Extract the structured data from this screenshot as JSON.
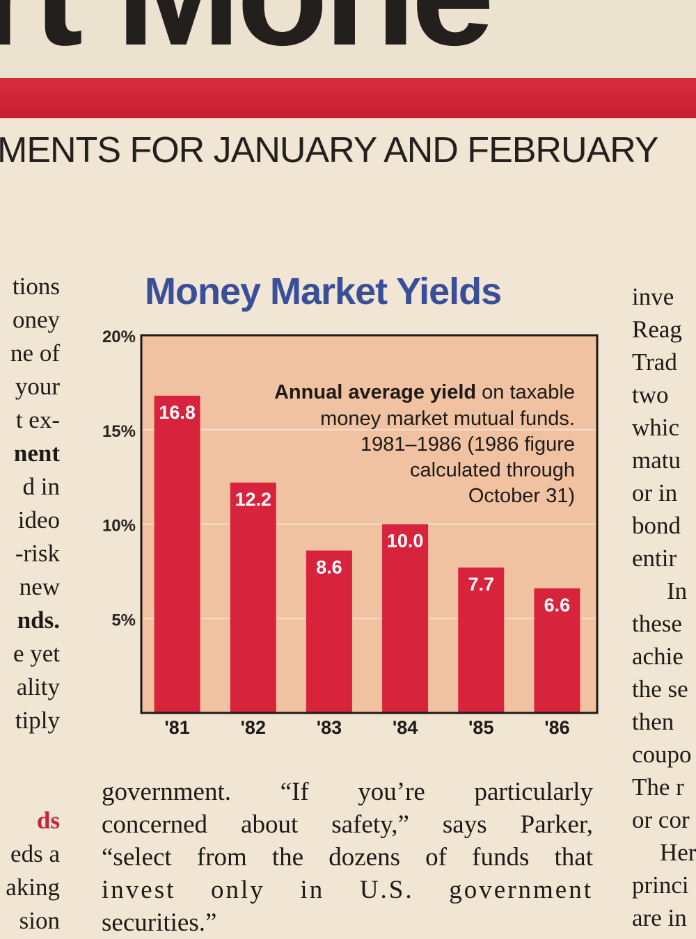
{
  "masthead": {
    "title": "rt Mone"
  },
  "subhead": "MENTS FOR JANUARY AND FEBRUARY",
  "left_column": [
    "tions",
    "oney",
    "ne of",
    "your",
    "t ex-",
    "nent",
    "d in",
    "ideo",
    "-risk",
    "new",
    "nds.",
    "e yet",
    "ality",
    "tiply",
    "",
    "",
    "ds",
    "eds a",
    "aking",
    "sion"
  ],
  "right_column": [
    "inve",
    "Reag",
    "Trad",
    "two",
    "whic",
    "matu",
    "or in",
    "bond",
    "entir",
    "In",
    "these",
    "achie",
    "the se",
    "then",
    "coupo",
    "The r",
    "or cor",
    "Her",
    "princi",
    "are in"
  ],
  "body_text": [
    "government. “If you’re particularly",
    "concerned about safety,” says Parker,",
    "“select from the dozens of funds that",
    "invest only in U.S. government",
    "securities.”"
  ],
  "colors": {
    "bar": "#d8233c",
    "plot_bg": "#f0c2a2",
    "title": "#3a4f99",
    "accent_red": "#c8233a"
  },
  "chart_data": {
    "type": "bar",
    "title": "Money Market Yields",
    "caption_bold": "Annual average yield",
    "caption_rest": " on taxable",
    "caption_lines": [
      "money market mutual funds.",
      "1981–1986 (1986 figure",
      "calculated through",
      "October 31)"
    ],
    "categories": [
      "'81",
      "'82",
      "'83",
      "'84",
      "'85",
      "'86"
    ],
    "values": [
      16.8,
      12.2,
      8.6,
      10.0,
      7.7,
      6.6
    ],
    "value_labels": [
      "16.8",
      "12.2",
      "8.6",
      "10.0",
      "7.7",
      "6.6"
    ],
    "yticks": [
      5,
      10,
      15,
      20
    ],
    "ytick_labels": [
      "5%",
      "10%",
      "15%",
      "20%"
    ],
    "ylim": [
      0,
      20
    ],
    "xlabel": "",
    "ylabel": "",
    "grid": true
  }
}
